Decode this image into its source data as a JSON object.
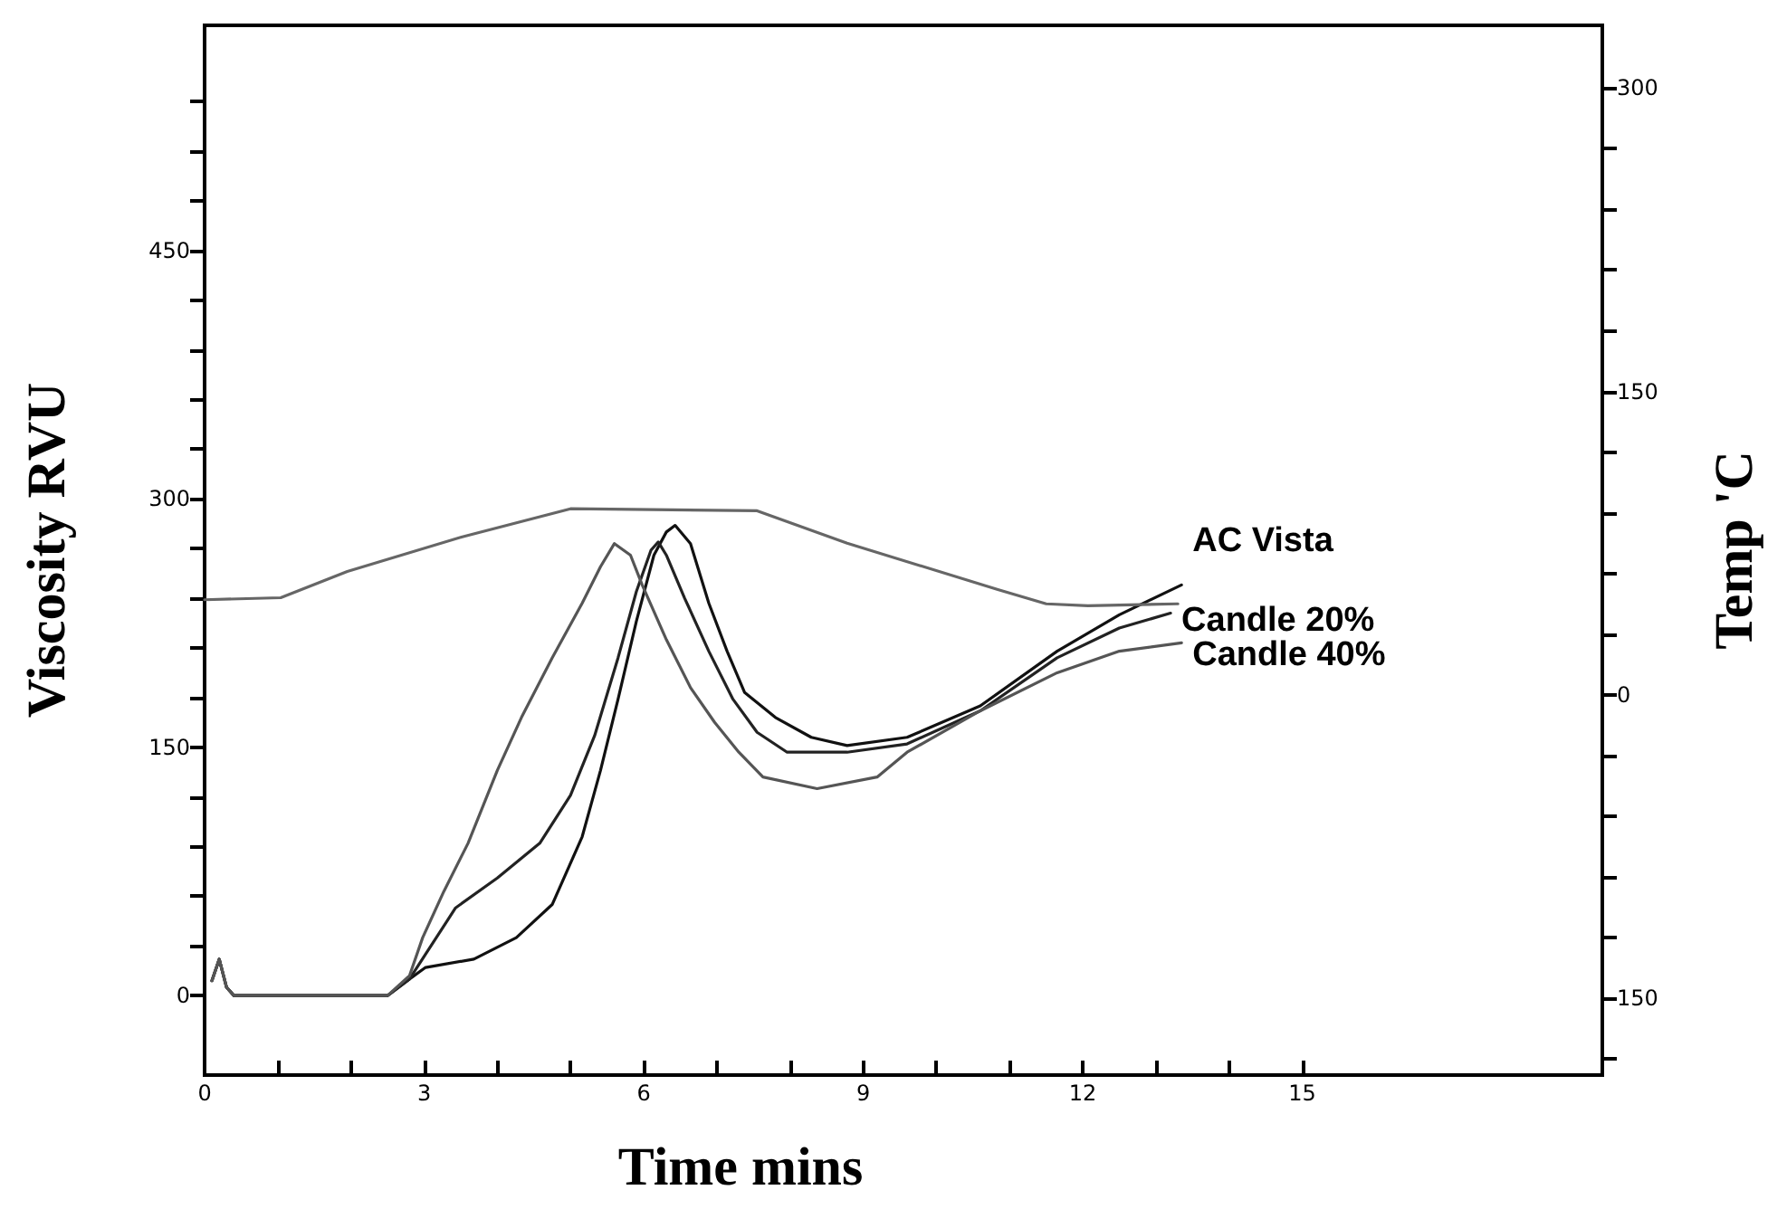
{
  "chart_data": {
    "type": "line",
    "xlabel": "Time mins",
    "ylabel": "Viscosity RVU",
    "y2label": "Temp 'C",
    "xlim": [
      0,
      19.1
    ],
    "ylim": [
      -48,
      586
    ],
    "y2lim": [
      -188,
      331
    ],
    "xticks": [
      0,
      {
        "value": 1,
        "label": null
      },
      {
        "value": 2,
        "label": null
      },
      3,
      {
        "value": 4,
        "label": null
      },
      {
        "value": 5,
        "label": null
      },
      6,
      {
        "value": 7,
        "label": null
      },
      {
        "value": 8,
        "label": null
      },
      9,
      {
        "value": 10,
        "label": null
      },
      {
        "value": 11,
        "label": null
      },
      12,
      {
        "value": 13,
        "label": null
      },
      {
        "value": 14,
        "label": null
      },
      15
    ],
    "yticks": [
      0,
      {
        "value": 30,
        "label": null
      },
      {
        "value": 60,
        "label": null
      },
      {
        "value": 90,
        "label": null
      },
      {
        "value": 120,
        "label": null
      },
      150,
      {
        "value": 180,
        "label": null
      },
      {
        "value": 210,
        "label": null
      },
      {
        "value": 240,
        "label": null
      },
      {
        "value": 270,
        "label": null
      },
      300,
      {
        "value": 330,
        "label": null
      },
      {
        "value": 360,
        "label": null
      },
      {
        "value": 390,
        "label": null
      },
      {
        "value": 420,
        "label": null
      },
      450,
      {
        "value": 480,
        "label": null
      },
      {
        "value": 510,
        "label": null
      },
      {
        "value": 540,
        "label": null
      }
    ],
    "y2ticks": [
      {
        "value": -180,
        "label": null
      },
      {
        "value": -150,
        "label": "150"
      },
      {
        "value": -120,
        "label": null
      },
      {
        "value": -90,
        "label": null
      },
      {
        "value": -60,
        "label": null
      },
      {
        "value": -30,
        "label": null
      },
      0,
      {
        "value": 30,
        "label": null
      },
      {
        "value": 60,
        "label": null
      },
      {
        "value": 90,
        "label": null
      },
      {
        "value": 120,
        "label": null
      },
      150,
      {
        "value": 180,
        "label": null
      },
      {
        "value": 210,
        "label": null
      },
      {
        "value": 240,
        "label": null
      },
      {
        "value": 270,
        "label": null
      },
      300
    ],
    "grid": false,
    "legend": false,
    "marker": "none",
    "series": [
      {
        "name": "AC Vista",
        "color": "#111111",
        "x": [
          0.1,
          0.2,
          0.3,
          0.4,
          1.5,
          2.5,
          2.8,
          3.02,
          3.68,
          4.26,
          4.75,
          5.16,
          5.41,
          5.65,
          5.9,
          6.14,
          6.31,
          6.43,
          6.64,
          6.89,
          7.14,
          7.38,
          7.8,
          8.29,
          8.78,
          9.6,
          10.6,
          11.65,
          12.5,
          13.35
        ],
        "values": [
          9,
          22,
          5,
          0,
          0,
          0,
          10,
          17,
          22,
          35,
          55,
          96,
          136,
          179,
          226,
          266,
          280,
          284,
          273,
          237,
          208,
          183,
          168,
          156,
          151,
          156,
          175,
          208,
          230,
          248
        ]
      },
      {
        "name": "Candle 20%",
        "color": "#222222",
        "x": [
          0.1,
          0.2,
          0.3,
          0.4,
          1.5,
          2.5,
          2.8,
          3.02,
          3.43,
          4.0,
          4.58,
          5.0,
          5.33,
          5.65,
          5.9,
          6.1,
          6.2,
          6.31,
          6.56,
          6.89,
          7.22,
          7.55,
          7.96,
          8.78,
          9.6,
          10.6,
          11.65,
          12.5,
          13.2
        ],
        "values": [
          9,
          22,
          5,
          0,
          0,
          0,
          10,
          25,
          53,
          71,
          92,
          121,
          157,
          204,
          244,
          269,
          274,
          266,
          240,
          208,
          179,
          159,
          147,
          147,
          152,
          172,
          204,
          222,
          231
        ]
      },
      {
        "name": "Candle 40%",
        "color": "#555555",
        "x": [
          0.1,
          0.2,
          0.3,
          0.4,
          1.5,
          2.5,
          2.8,
          2.98,
          3.27,
          3.6,
          4.0,
          4.33,
          4.75,
          5.16,
          5.41,
          5.6,
          5.82,
          5.98,
          6.31,
          6.64,
          6.97,
          7.3,
          7.63,
          8.37,
          9.19,
          9.6,
          10.6,
          11.65,
          12.5,
          13.35
        ],
        "values": [
          9,
          22,
          5,
          0,
          0,
          0,
          12,
          35,
          63,
          92,
          136,
          168,
          204,
          237,
          259,
          273,
          266,
          248,
          215,
          186,
          165,
          147,
          132,
          125,
          132,
          147,
          172,
          195,
          208,
          213
        ]
      },
      {
        "axis": "y2",
        "color": "#666666",
        "x": [
          0.0,
          1.04,
          1.95,
          3.51,
          5.0,
          7.55,
          8.78,
          10.84,
          11.5,
          12.07,
          13.3
        ],
        "values": [
          47,
          48,
          61,
          78,
          92,
          91,
          75,
          52,
          45,
          44,
          45
        ]
      }
    ]
  }
}
